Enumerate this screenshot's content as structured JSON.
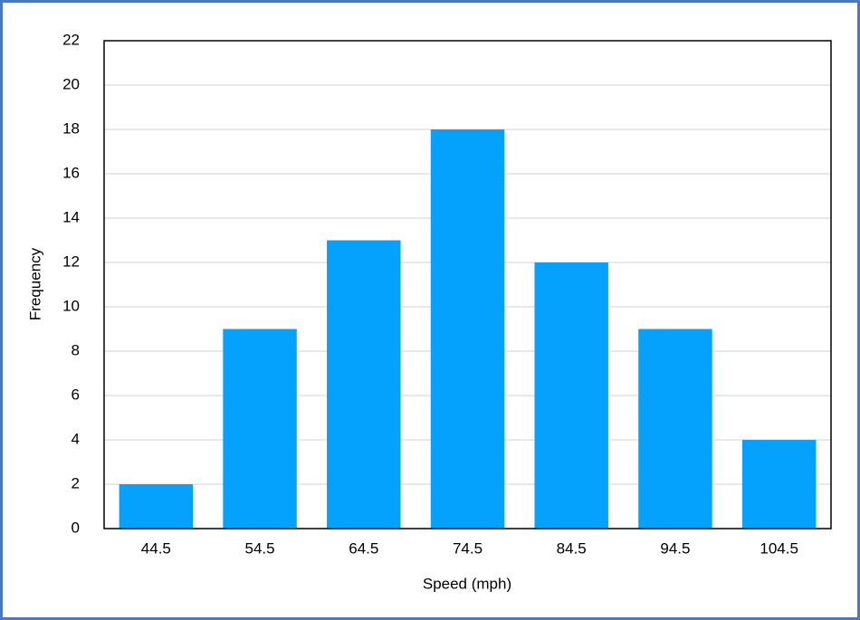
{
  "chart_data": {
    "type": "bar",
    "x_label": "Speed (mph)",
    "y_label": "Frequency",
    "categories": [
      "44.5",
      "54.5",
      "64.5",
      "74.5",
      "84.5",
      "94.5",
      "104.5"
    ],
    "values": [
      2,
      9,
      13,
      18,
      12,
      9,
      4
    ],
    "color": "#04a2fd",
    "ylim": [
      0,
      22
    ],
    "yticks": [
      0,
      2,
      4,
      6,
      8,
      10,
      12,
      14,
      16,
      18,
      20,
      22
    ],
    "grid": true
  }
}
